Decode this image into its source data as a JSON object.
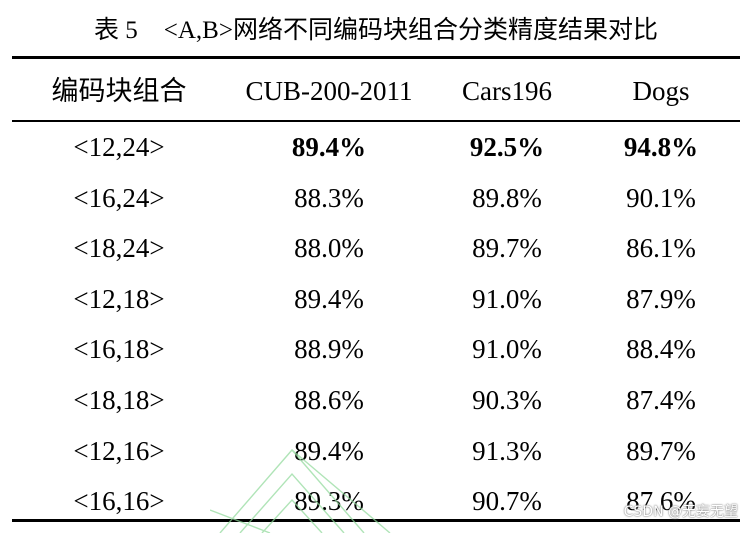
{
  "caption": {
    "number": "表 5",
    "title": "<A,B>网络不同编码块组合分类精度结果对比"
  },
  "table": {
    "headers": [
      "编码块组合",
      "CUB-200-2011",
      "Cars196",
      "Dogs"
    ],
    "rows": [
      {
        "combo": "<12,24>",
        "cub": "89.4%",
        "cars": "92.5%",
        "dogs": "94.8%",
        "bold": true
      },
      {
        "combo": "<16,24>",
        "cub": "88.3%",
        "cars": "89.8%",
        "dogs": "90.1%",
        "bold": false
      },
      {
        "combo": "<18,24>",
        "cub": "88.0%",
        "cars": "89.7%",
        "dogs": "86.1%",
        "bold": false
      },
      {
        "combo": "<12,18>",
        "cub": "89.4%",
        "cars": "91.0%",
        "dogs": "87.9%",
        "bold": false
      },
      {
        "combo": "<16,18>",
        "cub": "88.9%",
        "cars": "91.0%",
        "dogs": "88.4%",
        "bold": false
      },
      {
        "combo": "<18,18>",
        "cub": "88.6%",
        "cars": "90.3%",
        "dogs": "87.4%",
        "bold": false
      },
      {
        "combo": "<12,16>",
        "cub": "89.4%",
        "cars": "91.3%",
        "dogs": "89.7%",
        "bold": false
      },
      {
        "combo": "<16,16>",
        "cub": "89.3%",
        "cars": "90.7%",
        "dogs": "87.6%",
        "bold": false
      }
    ]
  },
  "watermark": "CSDN @无妄无望",
  "colors": {
    "text": "#000000",
    "decoration": "#8fd99a"
  }
}
